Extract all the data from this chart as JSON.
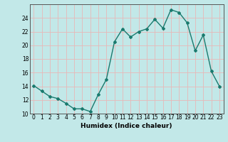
{
  "x": [
    0,
    1,
    2,
    3,
    4,
    5,
    6,
    7,
    8,
    9,
    10,
    11,
    12,
    13,
    14,
    15,
    16,
    17,
    18,
    19,
    20,
    21,
    22,
    23
  ],
  "y": [
    14.1,
    13.3,
    12.5,
    12.2,
    11.5,
    10.7,
    10.7,
    10.3,
    12.8,
    15.0,
    20.5,
    22.4,
    21.2,
    22.0,
    22.4,
    23.8,
    22.5,
    25.2,
    24.8,
    23.3,
    19.2,
    21.5,
    16.2,
    14.0
  ],
  "line_color": "#1a7a6e",
  "bg_color": "#c2e8e8",
  "grid_color": "#e8b8b8",
  "xlabel": "Humidex (Indice chaleur)",
  "ylim": [
    10,
    26
  ],
  "xlim": [
    -0.5,
    23.5
  ],
  "yticks": [
    10,
    12,
    14,
    16,
    18,
    20,
    22,
    24
  ],
  "xticks": [
    0,
    1,
    2,
    3,
    4,
    5,
    6,
    7,
    8,
    9,
    10,
    11,
    12,
    13,
    14,
    15,
    16,
    17,
    18,
    19,
    20,
    21,
    22,
    23
  ],
  "xlabel_fontsize": 6.5,
  "tick_fontsize": 5.5,
  "marker": "D",
  "marker_size": 2.0,
  "line_width": 1.0
}
